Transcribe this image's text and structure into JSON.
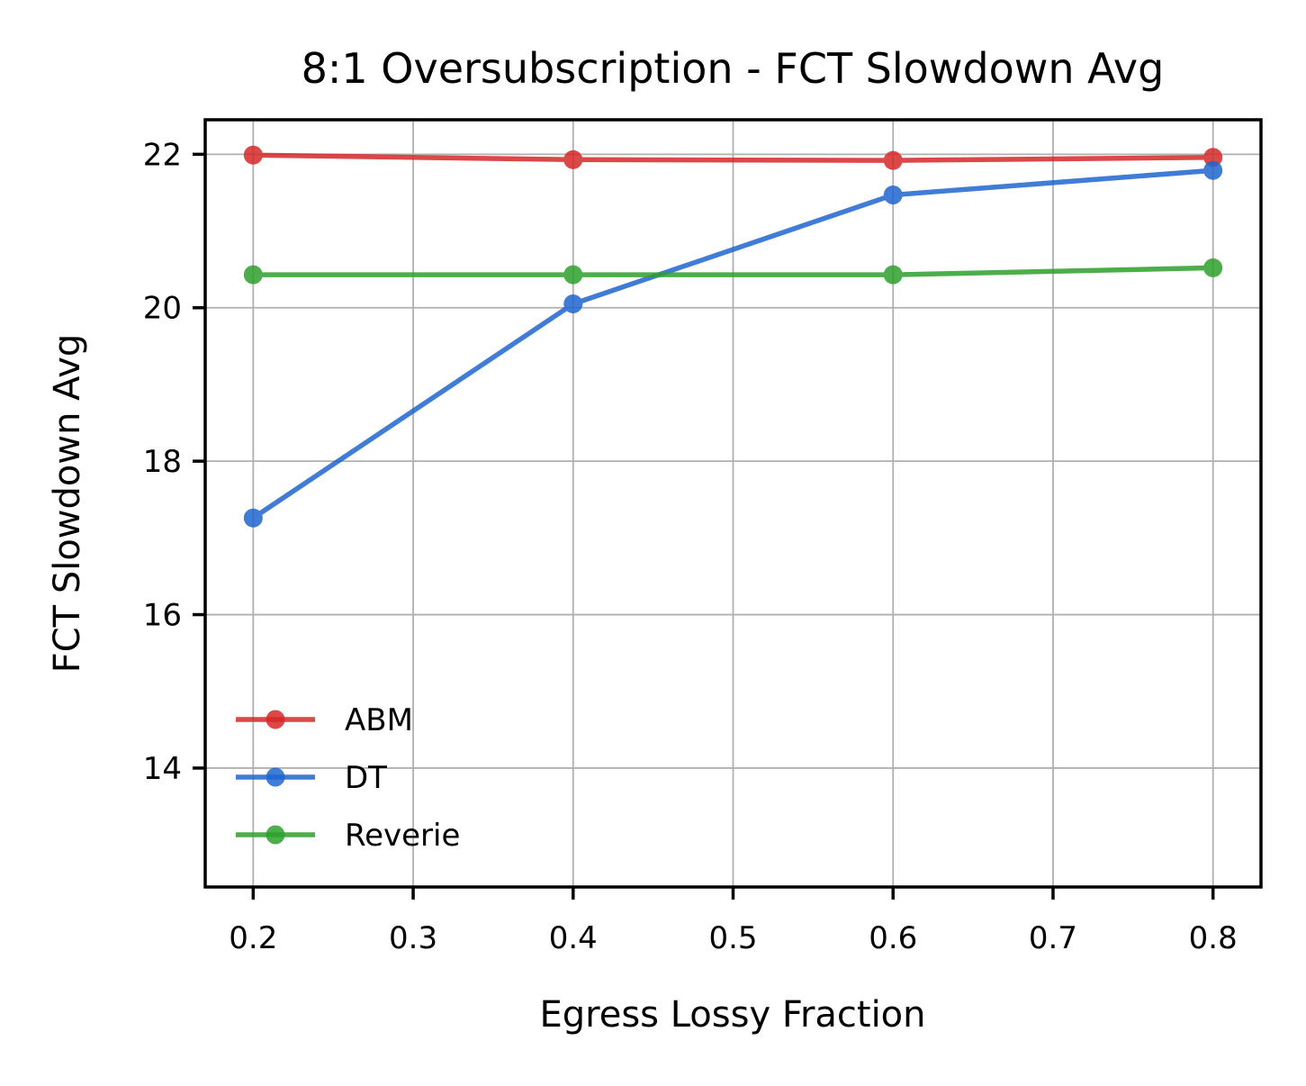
{
  "chart_data": {
    "type": "line",
    "title": "8:1 Oversubscription - FCT Slowdown Avg",
    "xlabel": "Egress Lossy Fraction",
    "ylabel": "FCT Slowdown Avg",
    "x": [
      0.2,
      0.4,
      0.6,
      0.8
    ],
    "xlim": [
      0.17,
      0.83
    ],
    "ylim": [
      12.45,
      22.45
    ],
    "xticks": [
      0.2,
      0.3,
      0.4,
      0.5,
      0.6,
      0.7,
      0.8
    ],
    "xtick_labels": [
      "0.2",
      "0.3",
      "0.4",
      "0.5",
      "0.6",
      "0.7",
      "0.8"
    ],
    "yticks": [
      14,
      16,
      18,
      20,
      22
    ],
    "ytick_labels": [
      "14",
      "16",
      "18",
      "20",
      "22"
    ],
    "grid": true,
    "legend_position": "lower-left",
    "series": [
      {
        "name": "ABM",
        "color": "#d62728",
        "marker": "circle",
        "values": [
          21.99,
          21.93,
          21.92,
          21.96
        ]
      },
      {
        "name": "DT",
        "color": "#1f66d0",
        "marker": "circle",
        "values": [
          17.26,
          20.05,
          21.47,
          21.79
        ]
      },
      {
        "name": "Reverie",
        "color": "#2ca02c",
        "marker": "circle",
        "values": [
          20.43,
          20.43,
          20.43,
          20.52
        ]
      }
    ]
  }
}
